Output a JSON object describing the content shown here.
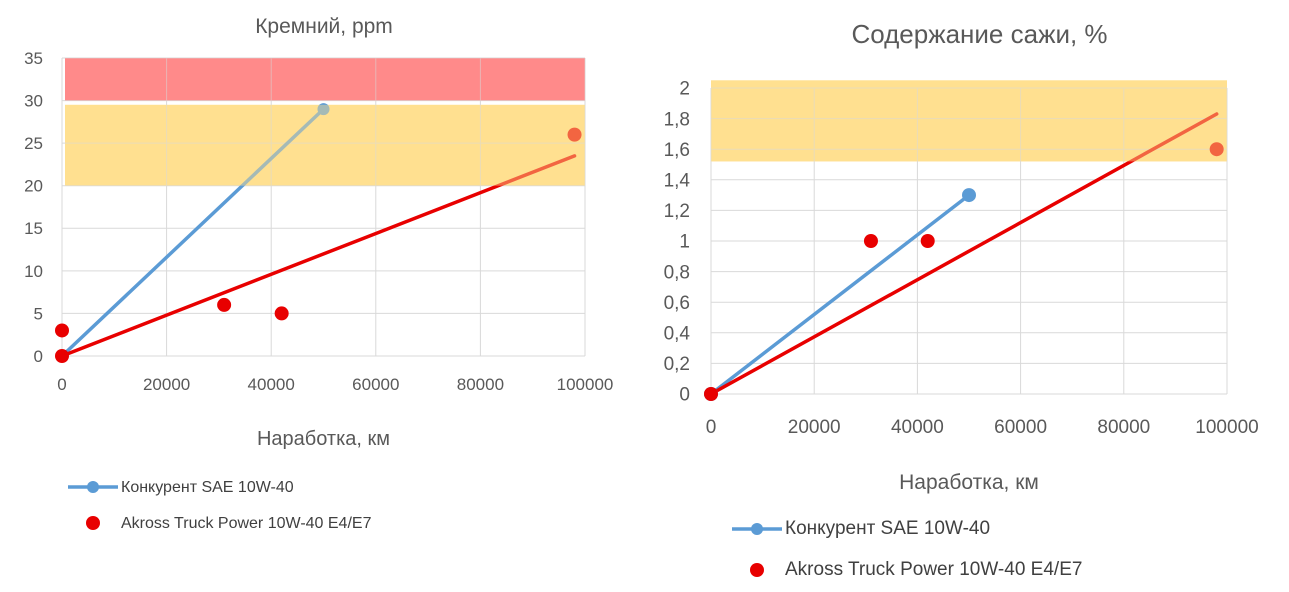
{
  "chart_data": [
    {
      "type": "scatter",
      "title": "Кремний, ppm",
      "xlabel": "Наработка, км",
      "ylabel": "",
      "xlim": [
        0,
        100000
      ],
      "ylim": [
        0,
        35
      ],
      "x_ticks": [
        0,
        20000,
        40000,
        60000,
        80000,
        100000
      ],
      "x_tick_labels": [
        "0",
        "20000",
        "40000",
        "60000",
        "80000",
        "100000"
      ],
      "y_ticks": [
        0,
        5,
        10,
        15,
        20,
        25,
        30,
        35
      ],
      "y_tick_labels": [
        "0",
        "5",
        "10",
        "15",
        "20",
        "25",
        "30",
        "35"
      ],
      "grid": true,
      "legend_position": "bottom-left",
      "bands": [
        {
          "from": 30,
          "to": 35,
          "color": "#ff8a8a"
        },
        {
          "from": 20,
          "to": 29.5,
          "color": "#ffe090"
        }
      ],
      "series": [
        {
          "name": "Конкурент SAE 10W-40",
          "kind": "line-markers",
          "color": "#5b9bd5",
          "points": [
            [
              0,
              0
            ],
            [
              50000,
              29
            ]
          ]
        },
        {
          "name": "Akross Truck Power 10W-40 E4/E7",
          "kind": "markers",
          "color": "#e80000",
          "points": [
            [
              0,
              3
            ],
            [
              0,
              0
            ],
            [
              31000,
              6
            ],
            [
              42000,
              5
            ],
            [
              98000,
              26
            ]
          ]
        }
      ],
      "trendline": {
        "color": "#e80000",
        "points": [
          [
            0,
            0
          ],
          [
            98000,
            23.5
          ]
        ]
      }
    },
    {
      "type": "scatter",
      "title": "Содержание сажи, %",
      "xlabel": "Наработка, км",
      "ylabel": "",
      "xlim": [
        0,
        100000
      ],
      "ylim": [
        0,
        2
      ],
      "x_ticks": [
        0,
        20000,
        40000,
        60000,
        80000,
        100000
      ],
      "x_tick_labels": [
        "0",
        "20000",
        "40000",
        "60000",
        "80000",
        "100000"
      ],
      "y_ticks": [
        0,
        0.2,
        0.4,
        0.6,
        0.8,
        1,
        1.2,
        1.4,
        1.6,
        1.8,
        2
      ],
      "y_tick_labels": [
        "0",
        "0,2",
        "0,4",
        "0,6",
        "0,8",
        "1",
        "1,2",
        "1,4",
        "1,6",
        "1,8",
        "2"
      ],
      "grid": true,
      "legend_position": "bottom-left",
      "bands": [
        {
          "from": 1.52,
          "to": 2.05,
          "color": "#ffe090"
        }
      ],
      "series": [
        {
          "name": "Конкурент SAE 10W-40",
          "kind": "line-markers",
          "color": "#5b9bd5",
          "points": [
            [
              0,
              0
            ],
            [
              50000,
              1.3
            ]
          ]
        },
        {
          "name": "Akross Truck Power 10W-40 E4/E7",
          "kind": "markers",
          "color": "#e80000",
          "points": [
            [
              0,
              0
            ],
            [
              31000,
              1
            ],
            [
              42000,
              1
            ],
            [
              98000,
              1.6
            ]
          ]
        }
      ],
      "trendline": {
        "color": "#e80000",
        "points": [
          [
            0,
            0
          ],
          [
            98000,
            1.83
          ]
        ]
      }
    }
  ]
}
